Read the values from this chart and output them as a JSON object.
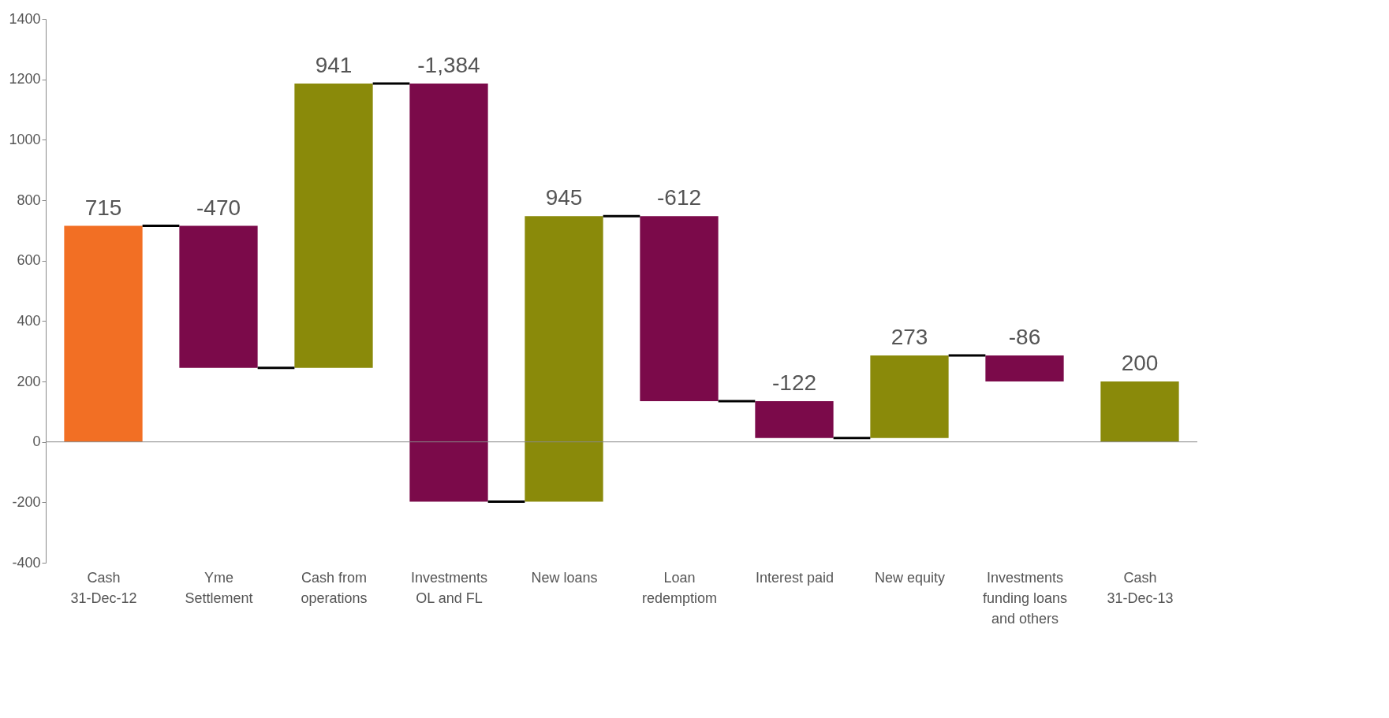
{
  "chart_data": {
    "type": "bar",
    "categories": [
      "Cash 31-Dec-12",
      "Yme Settlement",
      "Cash from operations",
      "Investments OL and FL",
      "New loans",
      "Loan redemptiom",
      "Interest paid",
      "New equity",
      "Investments funding loans and others",
      "Cash 31-Dec-13"
    ],
    "values": [
      715,
      -470,
      941,
      -1384,
      945,
      -612,
      -122,
      273,
      -86,
      200
    ],
    "base": [
      0,
      715,
      245,
      1186,
      -198,
      747,
      135,
      13,
      286,
      0
    ],
    "colors": [
      "#f26f24",
      "#7b0a4a",
      "#8a8a0a",
      "#7b0a4a",
      "#8a8a0a",
      "#7b0a4a",
      "#7b0a4a",
      "#8a8a0a",
      "#7b0a4a",
      "#8a8a0a"
    ],
    "value_labels": [
      "715",
      "-470",
      "941",
      "-1,384",
      "945",
      "-612",
      "-122",
      "273",
      "-86",
      "200"
    ],
    "ylim": [
      -400,
      1400
    ],
    "yticks": [
      -400,
      -200,
      0,
      200,
      400,
      600,
      800,
      1000,
      1200,
      1400
    ],
    "grid": false,
    "ref_lines": [
      {
        "axis": "y",
        "value": 0,
        "color": "#888888"
      }
    ]
  }
}
